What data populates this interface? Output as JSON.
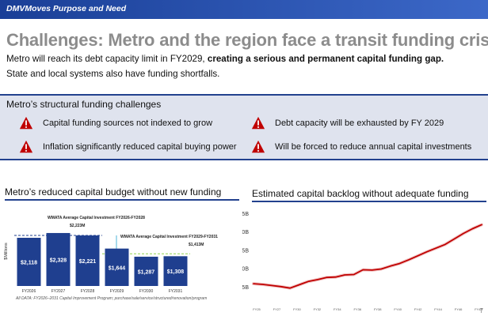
{
  "header": {
    "label": "DMVMoves Purpose and Need"
  },
  "title": "Challenges: Metro and the region face a transit funding crisis",
  "subtitle": {
    "part1": "Metro will reach its debt capacity limit in FY2029, ",
    "bold": "creating a serious and permanent capital funding gap.",
    "line2": "State and local systems also have funding shortfalls."
  },
  "challenges": {
    "title": "Metro’s structural funding challenges",
    "items": [
      "Capital funding sources not indexed to grow",
      "Debt capacity will be exhausted by FY 2029",
      "Inflation significantly reduced capital buying power",
      "Will be forced to reduce annual capital investments"
    ],
    "icon": "warning-icon",
    "icon_color": "#c00000"
  },
  "left_section": {
    "title": "Metro’s reduced capital budget without new funding"
  },
  "right_section": {
    "title": "Estimated capital backlog without adequate funding"
  },
  "footnote": "All DATA: FY2026–2031 Capital Improvement Program; purchase/sale/service/structured/renovation/program",
  "page_number": "7",
  "colors": {
    "brand": "#1a3f97",
    "bar": "#1f3f8f",
    "line": "#c00000"
  },
  "chart_data": [
    {
      "type": "bar",
      "categories": [
        "FY2026",
        "FY2027",
        "FY2028",
        "FY2029",
        "FY2030",
        "FY2031"
      ],
      "values": [
        2118,
        2328,
        2221,
        1644,
        1287,
        1308
      ],
      "value_labels": [
        "$2,118",
        "$2,328",
        "$2,221",
        "$1,644",
        "$1,287",
        "$1,308"
      ],
      "ylabel": "$Millions",
      "ylim": [
        0,
        2500
      ],
      "annotations": [
        {
          "text": "WMATA Average Capital Investment FY2026-FY2028",
          "value_label": "$2,223M",
          "value": 2223
        },
        {
          "text": "WMATA Average Capital Investment FY2029-FY2031",
          "value_label": "$1,413M",
          "value": 1413
        }
      ]
    },
    {
      "type": "line",
      "x": [
        2024,
        2025,
        2026,
        2027,
        2028,
        2029,
        2030,
        2031,
        2032,
        2033,
        2034,
        2035,
        2036,
        2037,
        2038,
        2039,
        2040,
        2041,
        2042,
        2043,
        2044,
        2045,
        2046,
        2047,
        2048,
        2049
      ],
      "x_tick_labels": [
        "FY25",
        "FY27",
        "FY30",
        "FY32",
        "FY34",
        "FY36",
        "FY38",
        "FY40",
        "FY42",
        "FY44",
        "FY46",
        "FY48"
      ],
      "values": [
        5.8,
        5.6,
        5.3,
        5.0,
        4.6,
        5.5,
        6.4,
        6.9,
        7.5,
        7.6,
        8.2,
        8.3,
        9.6,
        9.5,
        9.8,
        10.6,
        11.3,
        12.3,
        13.4,
        14.5,
        15.5,
        16.5,
        18.0,
        19.5,
        20.8,
        21.9
      ],
      "yticks": [
        "$5B",
        "$10B",
        "$15B",
        "$20B",
        "$25B"
      ],
      "ylim": [
        0,
        25
      ],
      "color": "#c00000"
    }
  ]
}
